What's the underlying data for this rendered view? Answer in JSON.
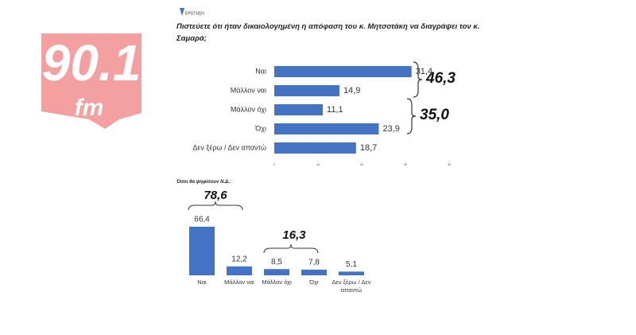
{
  "logo": {
    "text": "90.1",
    "suffix": "fm"
  },
  "source": "ΕΡΩΤΗΣΗ",
  "chart_data": [
    {
      "type": "hbar",
      "title": "Πιστεύετε ότι ήταν δικαιολογημένη η απόφαση του κ. Μητσοτάκη να διαγράψει τον κ. Σαμαρά;",
      "categories": [
        "Ναι",
        "Μάλλον ναι",
        "Μάλλον όχι",
        "Όχι",
        "Δεν ξέρω / Δεν απαντώ"
      ],
      "values": [
        31.4,
        14.9,
        11.1,
        23.9,
        18.7
      ],
      "value_labels": [
        "31,4",
        "14,9",
        "11,1",
        "23,9",
        "18,7"
      ],
      "color": "#4472c4",
      "xlim": [
        0,
        40
      ],
      "xticks": [
        0,
        10,
        20,
        30,
        40
      ],
      "annotations": [
        "46,3",
        "35,0"
      ]
    },
    {
      "type": "bar",
      "title": "Όσοι θα ψηφίσουν Ν.Δ.:",
      "categories": [
        "Ναι",
        "Μάλλον ναι",
        "Μάλλον όχι",
        "Όχι",
        "Δεν ξέρω / Δεν απαντώ"
      ],
      "values": [
        66.4,
        12.2,
        8.5,
        7.8,
        5.1
      ],
      "value_labels": [
        "66,4",
        "12,2",
        "8,5",
        "7,8",
        "5,1"
      ],
      "color": "#4472c4",
      "annotations": [
        "78,6",
        "16,3"
      ]
    }
  ]
}
